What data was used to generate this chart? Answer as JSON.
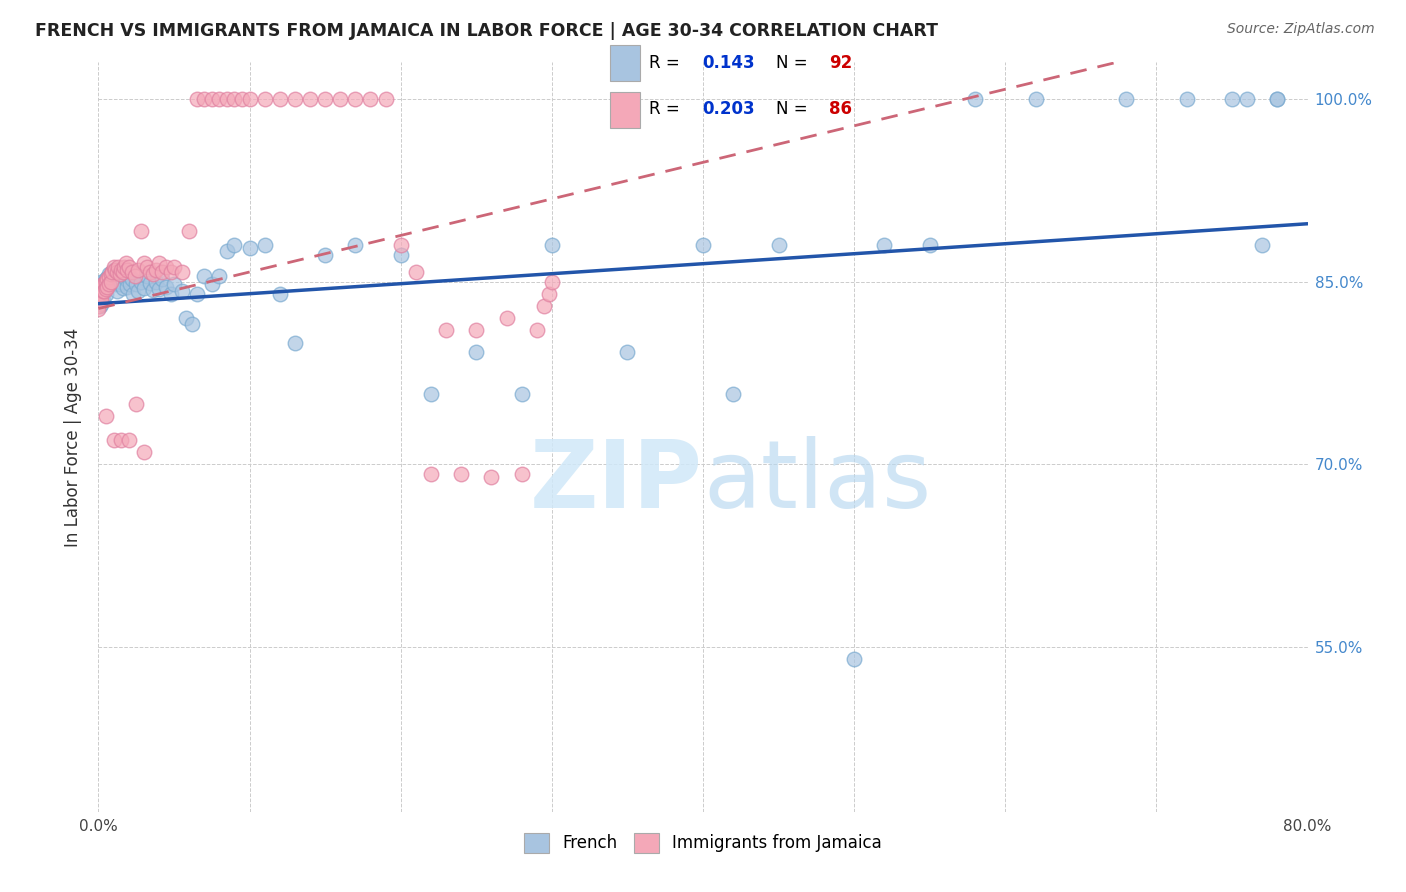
{
  "title": "FRENCH VS IMMIGRANTS FROM JAMAICA IN LABOR FORCE | AGE 30-34 CORRELATION CHART",
  "source": "Source: ZipAtlas.com",
  "ylabel": "In Labor Force | Age 30-34",
  "xlim": [
    0.0,
    0.8
  ],
  "ylim": [
    0.415,
    1.03
  ],
  "ytick_vals": [
    0.55,
    0.7,
    0.85,
    1.0
  ],
  "ytick_labels": [
    "55.0%",
    "70.0%",
    "85.0%",
    "100.0%"
  ],
  "xtick_vals": [
    0.0,
    0.1,
    0.2,
    0.3,
    0.4,
    0.5,
    0.6,
    0.7,
    0.8
  ],
  "xtick_labels": [
    "0.0%",
    "",
    "",
    "",
    "",
    "",
    "",
    "",
    "80.0%"
  ],
  "french_R": 0.143,
  "french_N": 92,
  "jamaica_R": 0.203,
  "jamaica_N": 86,
  "french_color": "#a8c4e0",
  "french_edge_color": "#7aaad0",
  "jamaica_color": "#f4a8b8",
  "jamaica_edge_color": "#e080a0",
  "french_line_color": "#2255aa",
  "jamaica_line_color": "#cc6677",
  "legend_R_color": "#0033cc",
  "legend_N_color": "#cc0000",
  "watermark_color": "#d0e8f8",
  "grid_color": "#cccccc",
  "tick_color": "#4488cc",
  "title_color": "#222222",
  "ylabel_color": "#333333",
  "source_color": "#666666",
  "french_line_intercept": 0.832,
  "french_line_slope": 0.082,
  "jamaica_line_intercept": 0.828,
  "jamaica_line_slope": 0.3,
  "scatter_size": 110,
  "scatter_alpha": 0.7
}
